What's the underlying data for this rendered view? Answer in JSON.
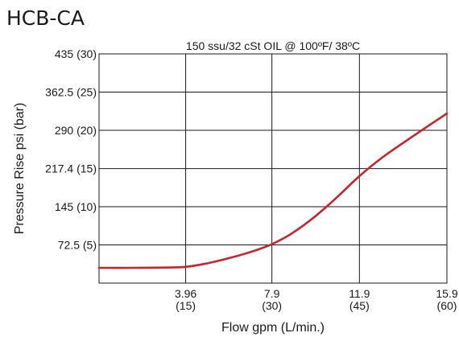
{
  "model": "HCB-CA",
  "chart_data": {
    "type": "line",
    "title": "150 ssu/32 cSt OIL @ 100ºF/ 38ºC",
    "xlabel": "Flow gpm (L/min.)",
    "ylabel": "Pressure Rise psi (bar)",
    "xlim": [
      0,
      15.9
    ],
    "ylim": [
      0,
      435
    ],
    "grid": true,
    "x_ticks": [
      {
        "value": 3.96,
        "line1": "3.96",
        "line2": "(15)"
      },
      {
        "value": 7.9,
        "line1": "7.9",
        "line2": "(30)"
      },
      {
        "value": 11.9,
        "line1": "11.9",
        "line2": "(45)"
      },
      {
        "value": 15.9,
        "line1": "15.9",
        "line2": "(60)"
      }
    ],
    "y_ticks": [
      {
        "value": 72.5,
        "label": "72.5 (5)"
      },
      {
        "value": 145,
        "label": "145 (10)"
      },
      {
        "value": 217.4,
        "label": "217.4 (15)"
      },
      {
        "value": 290,
        "label": "290 (20)"
      },
      {
        "value": 362.5,
        "label": "362.5 (25)"
      },
      {
        "value": 435,
        "label": "435 (30)"
      }
    ],
    "series": [
      {
        "color": "#c8232b",
        "x": [
          0,
          1.5,
          3.0,
          4.0,
          5.0,
          6.0,
          7.0,
          7.9,
          8.8,
          9.8,
          10.8,
          11.9,
          13.0,
          14.5,
          15.9
        ],
        "y": [
          29,
          29,
          29.5,
          31,
          38,
          48,
          60,
          74,
          94,
          124,
          160,
          203,
          240,
          283,
          322
        ]
      }
    ]
  }
}
